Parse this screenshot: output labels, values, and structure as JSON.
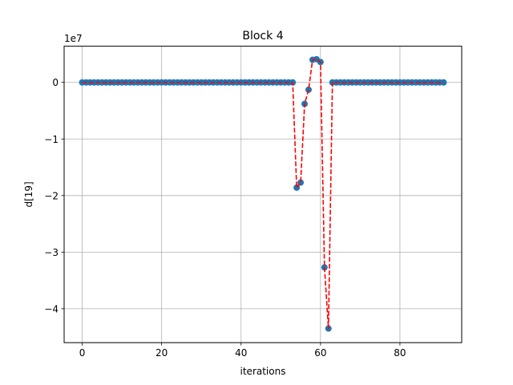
{
  "chart_data": {
    "type": "scatter",
    "title": "Block 4",
    "xlabel": "iterations",
    "ylabel": "d[19]",
    "offset_text": "1e7",
    "xlim": [
      -4.55,
      95.55
    ],
    "ylim": [
      -46000000,
      6400000
    ],
    "xticks": [
      0,
      20,
      40,
      60,
      80
    ],
    "yticks": [
      0,
      -10000000,
      -20000000,
      -30000000,
      -40000000
    ],
    "ytick_labels": [
      "0",
      "−1",
      "−2",
      "−3",
      "−4"
    ],
    "grid": true,
    "series": [
      {
        "marker_color": "#1f77b4",
        "line_color": "#ff0000",
        "line_style": "dashed",
        "x": [
          0,
          1,
          2,
          3,
          4,
          5,
          6,
          7,
          8,
          9,
          10,
          11,
          12,
          13,
          14,
          15,
          16,
          17,
          18,
          19,
          20,
          21,
          22,
          23,
          24,
          25,
          26,
          27,
          28,
          29,
          30,
          31,
          32,
          33,
          34,
          35,
          36,
          37,
          38,
          39,
          40,
          41,
          42,
          43,
          44,
          45,
          46,
          47,
          48,
          49,
          50,
          51,
          52,
          53,
          54,
          55,
          56,
          57,
          58,
          59,
          60,
          61,
          62,
          63,
          64,
          65,
          66,
          67,
          68,
          69,
          70,
          71,
          72,
          73,
          74,
          75,
          76,
          77,
          78,
          79,
          80,
          81,
          82,
          83,
          84,
          85,
          86,
          87,
          88,
          89,
          90,
          91
        ],
        "y": [
          0,
          0,
          0,
          0,
          0,
          0,
          0,
          0,
          0,
          0,
          0,
          0,
          0,
          0,
          0,
          0,
          0,
          0,
          0,
          0,
          0,
          0,
          0,
          0,
          0,
          0,
          0,
          0,
          0,
          0,
          0,
          0,
          0,
          0,
          0,
          0,
          0,
          0,
          0,
          0,
          0,
          0,
          0,
          0,
          0,
          0,
          0,
          0,
          0,
          0,
          0,
          0,
          0,
          0,
          -18600000,
          -17700000,
          -3800000,
          -1300000,
          4000000,
          4100000,
          3600000,
          -32700000,
          -43500000,
          0,
          0,
          0,
          0,
          0,
          0,
          0,
          0,
          0,
          0,
          0,
          0,
          0,
          0,
          0,
          0,
          0,
          0,
          0,
          0,
          0,
          0,
          0,
          0,
          0,
          0,
          0,
          0,
          0
        ]
      }
    ]
  }
}
